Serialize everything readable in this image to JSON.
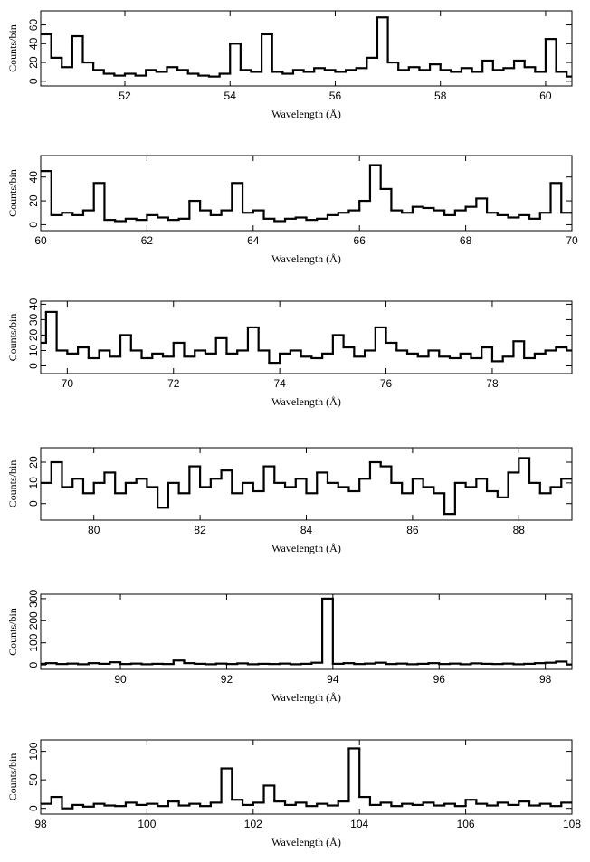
{
  "chart_data": [
    {
      "type": "step",
      "xlabel": "Wavelength (Å)",
      "ylabel": "Counts/bin",
      "xlim": [
        50.4,
        60.5
      ],
      "ylim": [
        -5,
        75
      ],
      "xticks": [
        52,
        54,
        56,
        58,
        60
      ],
      "yticks": [
        0,
        20,
        40,
        60
      ],
      "color": "#000000",
      "x": [
        50.4,
        50.6,
        50.8,
        51.0,
        51.2,
        51.4,
        51.6,
        51.8,
        52.0,
        52.2,
        52.4,
        52.6,
        52.8,
        53.0,
        53.2,
        53.4,
        53.6,
        53.8,
        54.0,
        54.2,
        54.4,
        54.6,
        54.8,
        55.0,
        55.2,
        55.4,
        55.6,
        55.8,
        56.0,
        56.2,
        56.4,
        56.6,
        56.8,
        57.0,
        57.2,
        57.4,
        57.6,
        57.8,
        58.0,
        58.2,
        58.4,
        58.6,
        58.8,
        59.0,
        59.2,
        59.4,
        59.6,
        59.8,
        60.0,
        60.2,
        60.4
      ],
      "values": [
        50,
        25,
        15,
        48,
        20,
        12,
        8,
        6,
        8,
        6,
        12,
        10,
        15,
        12,
        8,
        6,
        5,
        8,
        40,
        12,
        10,
        50,
        10,
        8,
        12,
        10,
        14,
        12,
        10,
        12,
        14,
        25,
        68,
        20,
        12,
        15,
        12,
        18,
        12,
        10,
        14,
        10,
        22,
        12,
        14,
        22,
        15,
        10,
        45,
        10,
        5
      ]
    },
    {
      "type": "step",
      "xlabel": "Wavelength (Å)",
      "ylabel": "Counts/bin",
      "xlim": [
        60,
        70
      ],
      "ylim": [
        -5,
        58
      ],
      "xticks": [
        60,
        62,
        64,
        66,
        68,
        70
      ],
      "yticks": [
        0,
        20,
        40
      ],
      "color": "#000000",
      "x": [
        60.0,
        60.2,
        60.4,
        60.6,
        60.8,
        61.0,
        61.2,
        61.4,
        61.6,
        61.8,
        62.0,
        62.2,
        62.4,
        62.6,
        62.8,
        63.0,
        63.2,
        63.4,
        63.6,
        63.8,
        64.0,
        64.2,
        64.4,
        64.6,
        64.8,
        65.0,
        65.2,
        65.4,
        65.6,
        65.8,
        66.0,
        66.2,
        66.4,
        66.6,
        66.8,
        67.0,
        67.2,
        67.4,
        67.6,
        67.8,
        68.0,
        68.2,
        68.4,
        68.6,
        68.8,
        69.0,
        69.2,
        69.4,
        69.6,
        69.8
      ],
      "values": [
        45,
        8,
        10,
        8,
        12,
        35,
        4,
        3,
        5,
        4,
        8,
        6,
        4,
        5,
        20,
        12,
        8,
        12,
        35,
        10,
        12,
        5,
        3,
        5,
        6,
        4,
        5,
        8,
        10,
        12,
        20,
        50,
        30,
        12,
        10,
        15,
        14,
        12,
        8,
        12,
        15,
        22,
        10,
        8,
        6,
        8,
        5,
        10,
        35,
        10
      ]
    },
    {
      "type": "step",
      "xlabel": "Wavelength (Å)",
      "ylabel": "Counts/bin",
      "xlim": [
        69.5,
        79.5
      ],
      "ylim": [
        -5,
        42
      ],
      "xticks": [
        70,
        72,
        74,
        76,
        78
      ],
      "yticks": [
        0,
        10,
        20,
        30,
        40
      ],
      "color": "#000000",
      "x": [
        69.4,
        69.6,
        69.8,
        70.0,
        70.2,
        70.4,
        70.6,
        70.8,
        71.0,
        71.2,
        71.4,
        71.6,
        71.8,
        72.0,
        72.2,
        72.4,
        72.6,
        72.8,
        73.0,
        73.2,
        73.4,
        73.6,
        73.8,
        74.0,
        74.2,
        74.4,
        74.6,
        74.8,
        75.0,
        75.2,
        75.4,
        75.6,
        75.8,
        76.0,
        76.2,
        76.4,
        76.6,
        76.8,
        77.0,
        77.2,
        77.4,
        77.6,
        77.8,
        78.0,
        78.2,
        78.4,
        78.6,
        78.8,
        79.0,
        79.2,
        79.4
      ],
      "values": [
        15,
        35,
        10,
        8,
        12,
        5,
        10,
        6,
        20,
        10,
        5,
        8,
        6,
        15,
        6,
        10,
        8,
        18,
        8,
        10,
        25,
        10,
        2,
        8,
        10,
        6,
        5,
        8,
        20,
        12,
        6,
        10,
        25,
        15,
        10,
        8,
        6,
        10,
        6,
        5,
        8,
        5,
        12,
        3,
        6,
        16,
        5,
        8,
        10,
        12,
        10
      ]
    },
    {
      "type": "step",
      "xlabel": "Wavelength (Å)",
      "ylabel": "Counts/bin",
      "xlim": [
        79,
        89
      ],
      "ylim": [
        -8,
        27
      ],
      "xticks": [
        80,
        82,
        84,
        86,
        88
      ],
      "yticks": [
        0,
        10,
        20
      ],
      "color": "#000000",
      "x": [
        79.0,
        79.2,
        79.4,
        79.6,
        79.8,
        80.0,
        80.2,
        80.4,
        80.6,
        80.8,
        81.0,
        81.2,
        81.4,
        81.6,
        81.8,
        82.0,
        82.2,
        82.4,
        82.6,
        82.8,
        83.0,
        83.2,
        83.4,
        83.6,
        83.8,
        84.0,
        84.2,
        84.4,
        84.6,
        84.8,
        85.0,
        85.2,
        85.4,
        85.6,
        85.8,
        86.0,
        86.2,
        86.4,
        86.6,
        86.8,
        87.0,
        87.2,
        87.4,
        87.6,
        87.8,
        88.0,
        88.2,
        88.4,
        88.6,
        88.8
      ],
      "values": [
        10,
        20,
        8,
        12,
        5,
        10,
        15,
        5,
        10,
        12,
        8,
        -2,
        10,
        5,
        18,
        8,
        12,
        16,
        5,
        10,
        6,
        18,
        10,
        8,
        12,
        5,
        15,
        10,
        8,
        6,
        12,
        20,
        18,
        10,
        5,
        12,
        8,
        5,
        -5,
        10,
        8,
        12,
        6,
        3,
        15,
        22,
        10,
        5,
        8,
        12
      ]
    },
    {
      "type": "step",
      "xlabel": "Wavelength (Å)",
      "ylabel": "Counts/bin",
      "xlim": [
        88.5,
        98.5
      ],
      "ylim": [
        -20,
        320
      ],
      "xticks": [
        90,
        92,
        94,
        96,
        98
      ],
      "yticks": [
        0,
        100,
        200,
        300
      ],
      "color": "#000000",
      "x": [
        88.4,
        88.6,
        88.8,
        89.0,
        89.2,
        89.4,
        89.6,
        89.8,
        90.0,
        90.2,
        90.4,
        90.6,
        90.8,
        91.0,
        91.2,
        91.4,
        91.6,
        91.8,
        92.0,
        92.2,
        92.4,
        92.6,
        92.8,
        93.0,
        93.2,
        93.4,
        93.6,
        93.8,
        94.0,
        94.2,
        94.4,
        94.6,
        94.8,
        95.0,
        95.2,
        95.4,
        95.6,
        95.8,
        96.0,
        96.2,
        96.4,
        96.6,
        96.8,
        97.0,
        97.2,
        97.4,
        97.6,
        97.8,
        98.0,
        98.2,
        98.4
      ],
      "values": [
        5,
        8,
        4,
        6,
        3,
        8,
        5,
        12,
        4,
        6,
        3,
        5,
        4,
        20,
        8,
        5,
        3,
        6,
        4,
        7,
        3,
        5,
        4,
        6,
        3,
        5,
        10,
        300,
        5,
        8,
        4,
        6,
        10,
        4,
        6,
        3,
        5,
        8,
        4,
        6,
        3,
        7,
        5,
        4,
        6,
        3,
        5,
        8,
        10,
        15,
        2
      ]
    },
    {
      "type": "step",
      "xlabel": "Wavelength (Å)",
      "ylabel": "Counts/bin",
      "xlim": [
        98,
        108
      ],
      "ylim": [
        -10,
        120
      ],
      "xticks": [
        98,
        100,
        102,
        104,
        106,
        108
      ],
      "yticks": [
        0,
        50,
        100
      ],
      "color": "#000000",
      "x": [
        98.0,
        98.2,
        98.4,
        98.6,
        98.8,
        99.0,
        99.2,
        99.4,
        99.6,
        99.8,
        100.0,
        100.2,
        100.4,
        100.6,
        100.8,
        101.0,
        101.2,
        101.4,
        101.6,
        101.8,
        102.0,
        102.2,
        102.4,
        102.6,
        102.8,
        103.0,
        103.2,
        103.4,
        103.6,
        103.8,
        104.0,
        104.2,
        104.4,
        104.6,
        104.8,
        105.0,
        105.2,
        105.4,
        105.6,
        105.8,
        106.0,
        106.2,
        106.4,
        106.6,
        106.8,
        107.0,
        107.2,
        107.4,
        107.6,
        107.8
      ],
      "values": [
        8,
        20,
        0,
        6,
        3,
        8,
        5,
        4,
        10,
        6,
        8,
        4,
        12,
        5,
        8,
        4,
        10,
        70,
        15,
        6,
        10,
        40,
        12,
        6,
        10,
        4,
        8,
        5,
        12,
        105,
        20,
        6,
        10,
        4,
        8,
        6,
        10,
        5,
        8,
        4,
        15,
        8,
        5,
        10,
        6,
        12,
        5,
        8,
        4,
        10
      ]
    }
  ]
}
